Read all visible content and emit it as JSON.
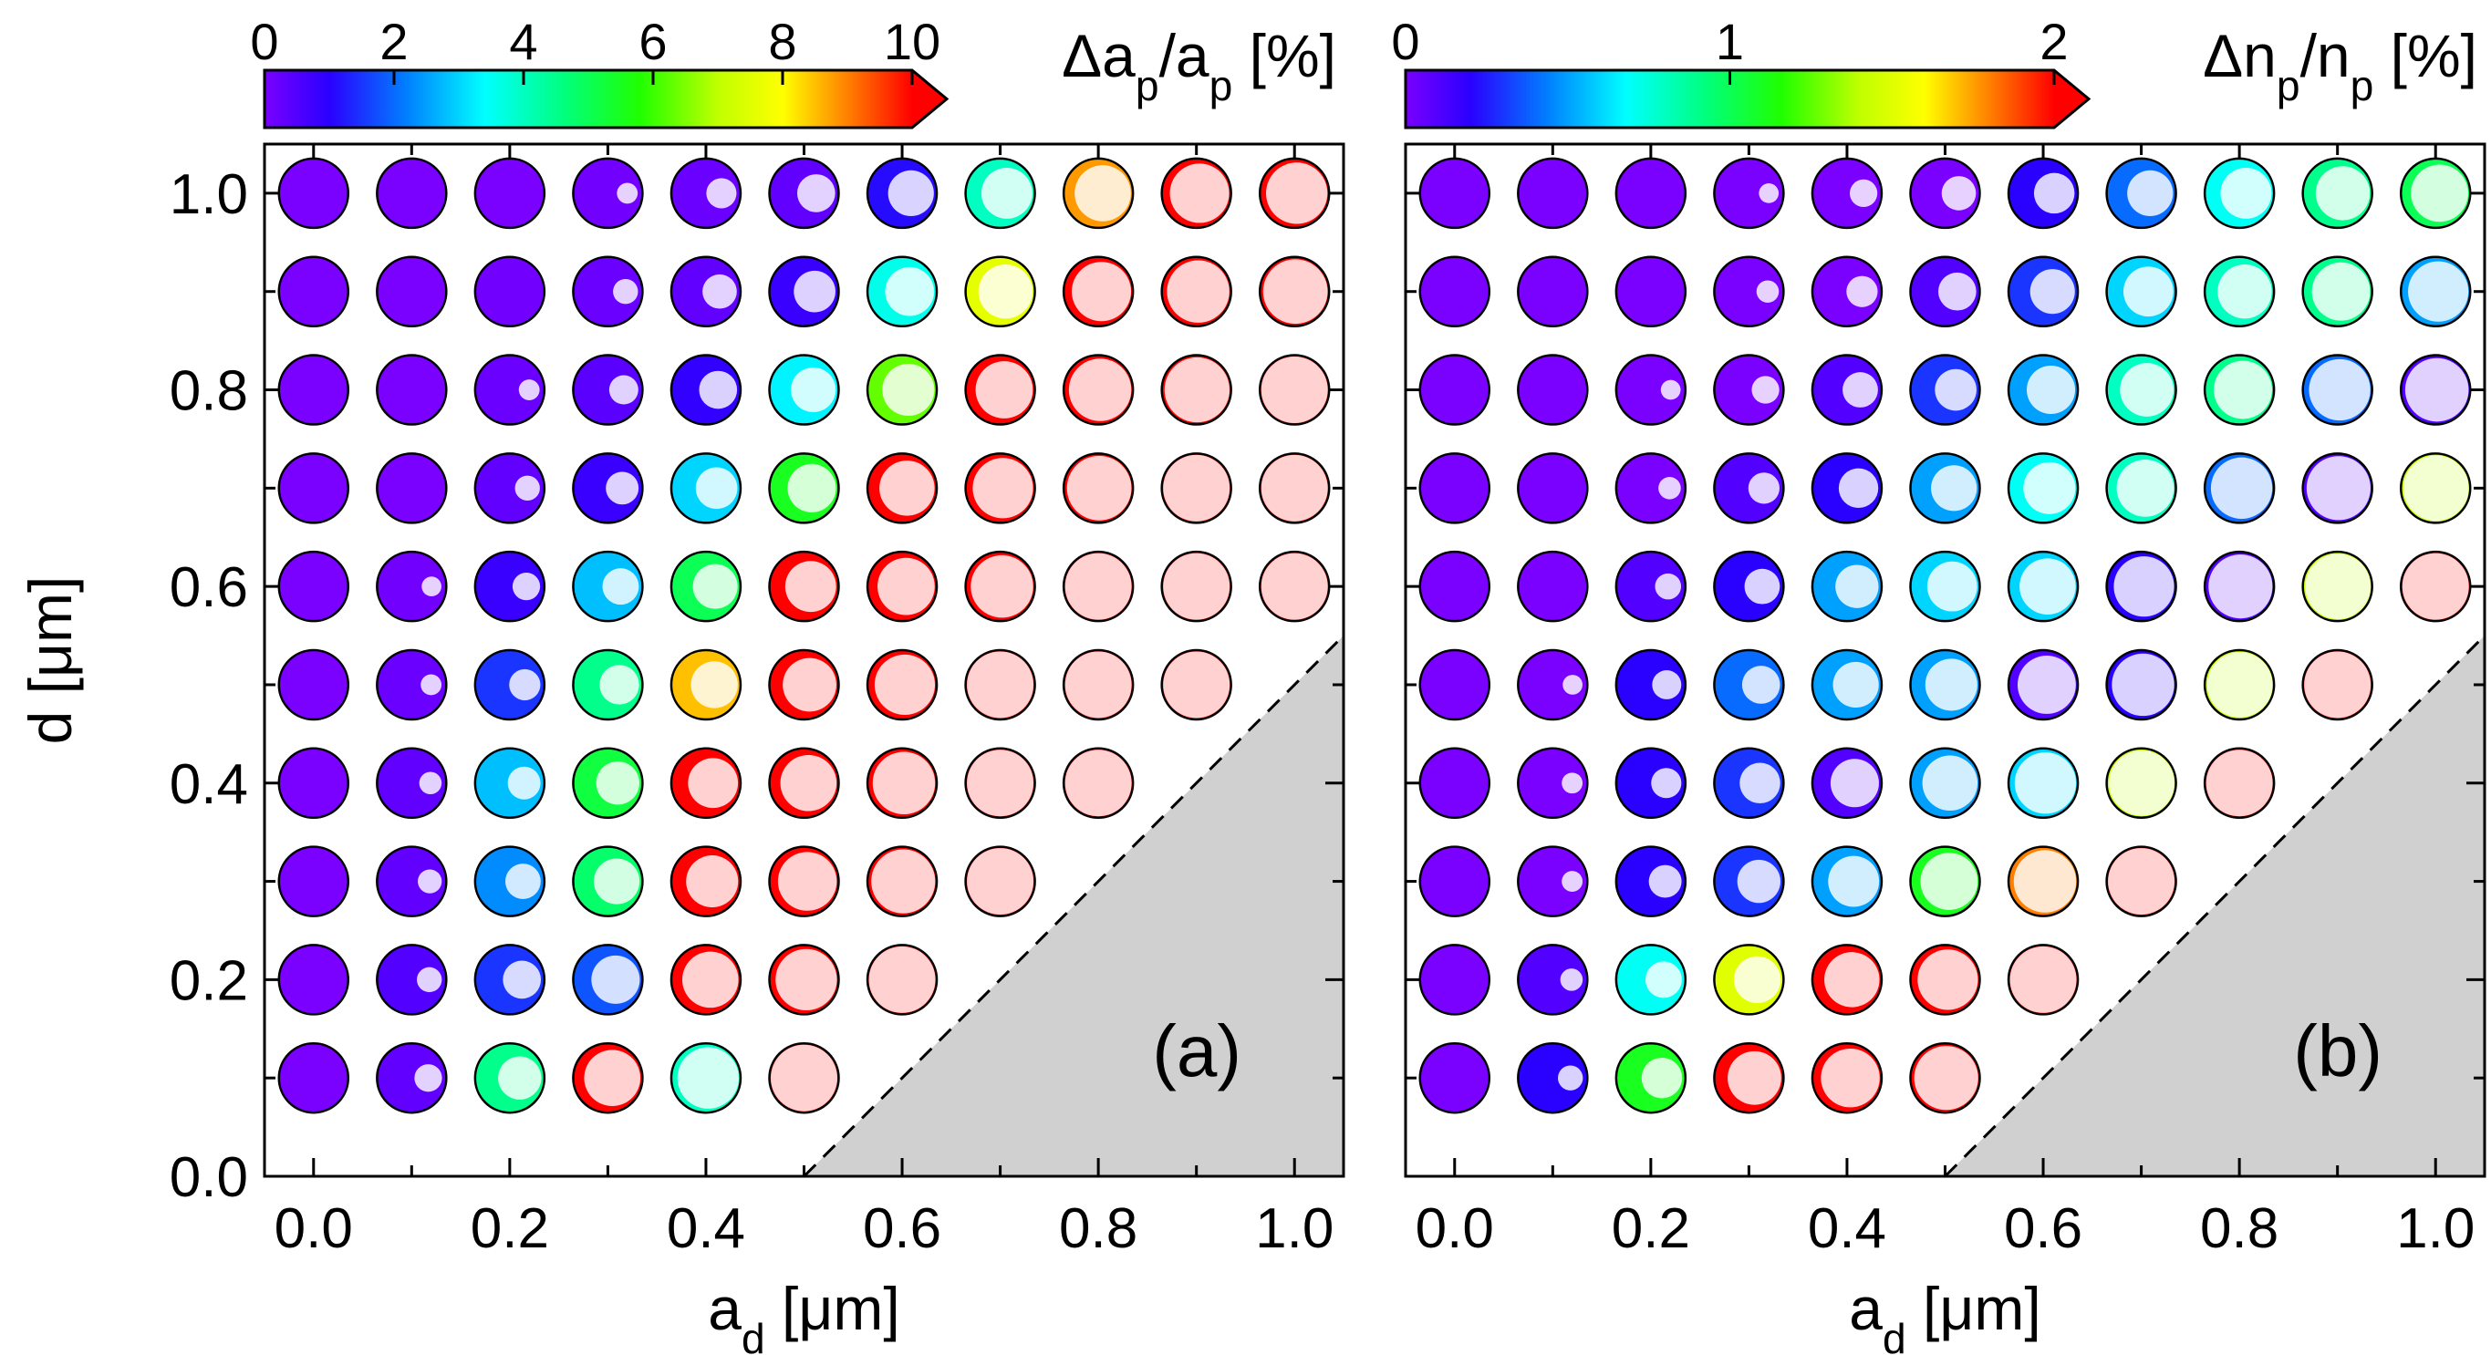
{
  "chart_data": [
    {
      "type": "scatter",
      "panel_label": "(a)",
      "xlabel": "a_d [μm]",
      "ylabel": "d [μm]",
      "xlim": [
        -0.05,
        1.05
      ],
      "ylim": [
        0.0,
        1.05
      ],
      "x_ticks": [
        "0.0",
        "0.2",
        "0.4",
        "0.6",
        "0.8",
        "1.0"
      ],
      "y_ticks": [
        "0.0",
        "0.2",
        "0.4",
        "0.6",
        "0.8",
        "1.0"
      ],
      "colorbar": {
        "title": "Δa_p/a_p [%]",
        "range": [
          0,
          10
        ],
        "ticks": [
          "0",
          "2",
          "4",
          "6",
          "8",
          "10"
        ],
        "extend": "max"
      },
      "shaded_region": "d < a_d - 0.5",
      "x": [
        0.0,
        0.1,
        0.2,
        0.3,
        0.4,
        0.5,
        0.6,
        0.7,
        0.8,
        0.9,
        1.0
      ],
      "y": [
        0.1,
        0.2,
        0.3,
        0.4,
        0.5,
        0.6,
        0.7,
        0.8,
        0.9,
        1.0
      ],
      "values": [
        [
          0.0,
          0.3,
          4.5,
          10.6,
          4.0,
          10.6,
          null,
          null,
          null,
          null,
          null
        ],
        [
          0.0,
          0.5,
          1.5,
          1.8,
          10.6,
          10.6,
          10.6,
          null,
          null,
          null,
          null
        ],
        [
          0.0,
          0.3,
          2.3,
          4.8,
          10.6,
          10.6,
          10.6,
          10.6,
          null,
          null,
          null
        ],
        [
          0.0,
          0.3,
          2.8,
          5.2,
          10.6,
          10.6,
          10.6,
          10.6,
          10.6,
          null,
          null
        ],
        [
          0.0,
          0.2,
          1.5,
          4.5,
          8.5,
          10.6,
          10.6,
          10.6,
          10.6,
          10.6,
          null
        ],
        [
          0.0,
          0.1,
          0.8,
          2.8,
          5.0,
          10.6,
          10.6,
          10.6,
          10.6,
          10.6,
          10.6
        ],
        [
          0.0,
          0.0,
          0.3,
          0.8,
          3.0,
          5.5,
          10.6,
          10.6,
          10.6,
          10.6,
          10.6
        ],
        [
          0.0,
          0.0,
          0.2,
          0.4,
          0.9,
          3.3,
          6.3,
          10.6,
          10.6,
          10.6,
          10.6
        ],
        [
          0.0,
          0.0,
          0.1,
          0.2,
          0.3,
          0.8,
          3.6,
          7.6,
          10.6,
          10.6,
          10.6
        ],
        [
          0.0,
          0.0,
          0.0,
          0.1,
          0.2,
          0.3,
          1.1,
          4.0,
          8.8,
          10.6,
          10.6
        ]
      ],
      "inner_fraction": [
        [
          0.0,
          0.25,
          0.55,
          0.8,
          0.9,
          1.0,
          null,
          null,
          null,
          null,
          null
        ],
        [
          0.0,
          0.2,
          0.45,
          0.65,
          0.8,
          0.9,
          1.0,
          null,
          null,
          null,
          null
        ],
        [
          0.0,
          0.18,
          0.4,
          0.6,
          0.72,
          0.85,
          0.95,
          1.0,
          null,
          null,
          null
        ],
        [
          0.0,
          0.15,
          0.35,
          0.55,
          0.68,
          0.8,
          0.92,
          1.0,
          1.0,
          null,
          null
        ],
        [
          0.0,
          0.12,
          0.32,
          0.48,
          0.62,
          0.75,
          0.88,
          1.0,
          1.0,
          1.0,
          null
        ],
        [
          0.0,
          0.1,
          0.25,
          0.42,
          0.58,
          0.7,
          0.82,
          0.92,
          1.0,
          1.0,
          1.0
        ],
        [
          0.0,
          0.0,
          0.2,
          0.35,
          0.52,
          0.65,
          0.78,
          0.88,
          0.96,
          1.0,
          1.0
        ],
        [
          0.0,
          0.0,
          0.12,
          0.28,
          0.45,
          0.58,
          0.72,
          0.82,
          0.92,
          0.97,
          1.0
        ],
        [
          0.0,
          0.0,
          0.0,
          0.2,
          0.38,
          0.52,
          0.66,
          0.76,
          0.86,
          0.92,
          0.96
        ],
        [
          0.0,
          0.0,
          0.0,
          0.12,
          0.3,
          0.45,
          0.6,
          0.7,
          0.8,
          0.86,
          0.9
        ]
      ]
    },
    {
      "type": "scatter",
      "panel_label": "(b)",
      "xlabel": "a_d [μm]",
      "ylabel": "",
      "xlim": [
        -0.05,
        1.05
      ],
      "ylim": [
        0.0,
        1.05
      ],
      "x_ticks": [
        "0.0",
        "0.2",
        "0.4",
        "0.6",
        "0.8",
        "1.0"
      ],
      "y_ticks": [],
      "colorbar": {
        "title": "Δn_p/n_p [%]",
        "range": [
          0,
          2
        ],
        "ticks": [
          "0",
          "1",
          "2"
        ],
        "extend": "max"
      },
      "shaded_region": "d < a_d - 0.5",
      "x": [
        0.0,
        0.1,
        0.2,
        0.3,
        0.4,
        0.5,
        0.6,
        0.7,
        0.8,
        0.9,
        1.0
      ],
      "y": [
        0.1,
        0.2,
        0.3,
        0.4,
        0.5,
        0.6,
        0.7,
        0.8,
        0.9,
        1.0
      ],
      "values": [
        [
          0.0,
          0.2,
          1.1,
          2.1,
          2.1,
          2.1,
          null,
          null,
          null,
          null,
          null
        ],
        [
          0.0,
          0.1,
          0.7,
          1.5,
          2.1,
          2.1,
          2.1,
          null,
          null,
          null,
          null
        ],
        [
          0.0,
          0.0,
          0.2,
          0.3,
          0.5,
          1.1,
          1.8,
          2.1,
          null,
          null,
          null
        ],
        [
          0.0,
          0.0,
          0.2,
          0.3,
          0.1,
          0.5,
          0.6,
          1.4,
          2.1,
          null,
          null
        ],
        [
          0.0,
          0.0,
          0.2,
          0.4,
          0.5,
          0.5,
          0.1,
          0.2,
          1.4,
          2.1,
          null
        ],
        [
          0.0,
          0.0,
          0.1,
          0.2,
          0.5,
          0.6,
          0.6,
          0.2,
          0.1,
          1.4,
          2.1
        ],
        [
          0.0,
          0.0,
          0.0,
          0.1,
          0.2,
          0.5,
          0.7,
          0.8,
          0.4,
          0.1,
          1.4
        ],
        [
          0.0,
          0.0,
          0.0,
          0.0,
          0.1,
          0.3,
          0.5,
          0.8,
          0.9,
          0.4,
          0.1
        ],
        [
          0.0,
          0.0,
          0.0,
          0.0,
          0.0,
          0.1,
          0.3,
          0.6,
          0.8,
          0.9,
          0.5
        ],
        [
          0.0,
          0.0,
          0.0,
          0.0,
          0.0,
          0.0,
          0.2,
          0.4,
          0.7,
          0.9,
          1.0
        ]
      ],
      "inner_fraction": [
        [
          0.0,
          0.2,
          0.5,
          0.75,
          0.85,
          0.95,
          null,
          null,
          null,
          null,
          null
        ],
        [
          0.0,
          0.15,
          0.42,
          0.62,
          0.78,
          0.88,
          1.0,
          null,
          null,
          null,
          null
        ],
        [
          0.0,
          0.12,
          0.35,
          0.55,
          0.7,
          0.82,
          0.92,
          1.0,
          null,
          null,
          null
        ],
        [
          0.0,
          0.12,
          0.3,
          0.5,
          0.65,
          0.78,
          0.9,
          0.98,
          1.0,
          null,
          null
        ],
        [
          0.0,
          0.1,
          0.28,
          0.45,
          0.6,
          0.72,
          0.84,
          0.92,
          0.98,
          1.0,
          null
        ],
        [
          0.0,
          0.0,
          0.22,
          0.4,
          0.55,
          0.68,
          0.8,
          0.88,
          0.95,
          0.98,
          1.0
        ],
        [
          0.0,
          0.0,
          0.15,
          0.32,
          0.48,
          0.6,
          0.72,
          0.82,
          0.9,
          0.95,
          0.98
        ],
        [
          0.0,
          0.0,
          0.1,
          0.25,
          0.4,
          0.52,
          0.65,
          0.75,
          0.84,
          0.9,
          0.94
        ],
        [
          0.0,
          0.0,
          0.0,
          0.15,
          0.32,
          0.45,
          0.58,
          0.68,
          0.76,
          0.84,
          0.88
        ],
        [
          0.0,
          0.0,
          0.0,
          0.1,
          0.25,
          0.38,
          0.5,
          0.6,
          0.7,
          0.76,
          0.82
        ]
      ]
    }
  ]
}
